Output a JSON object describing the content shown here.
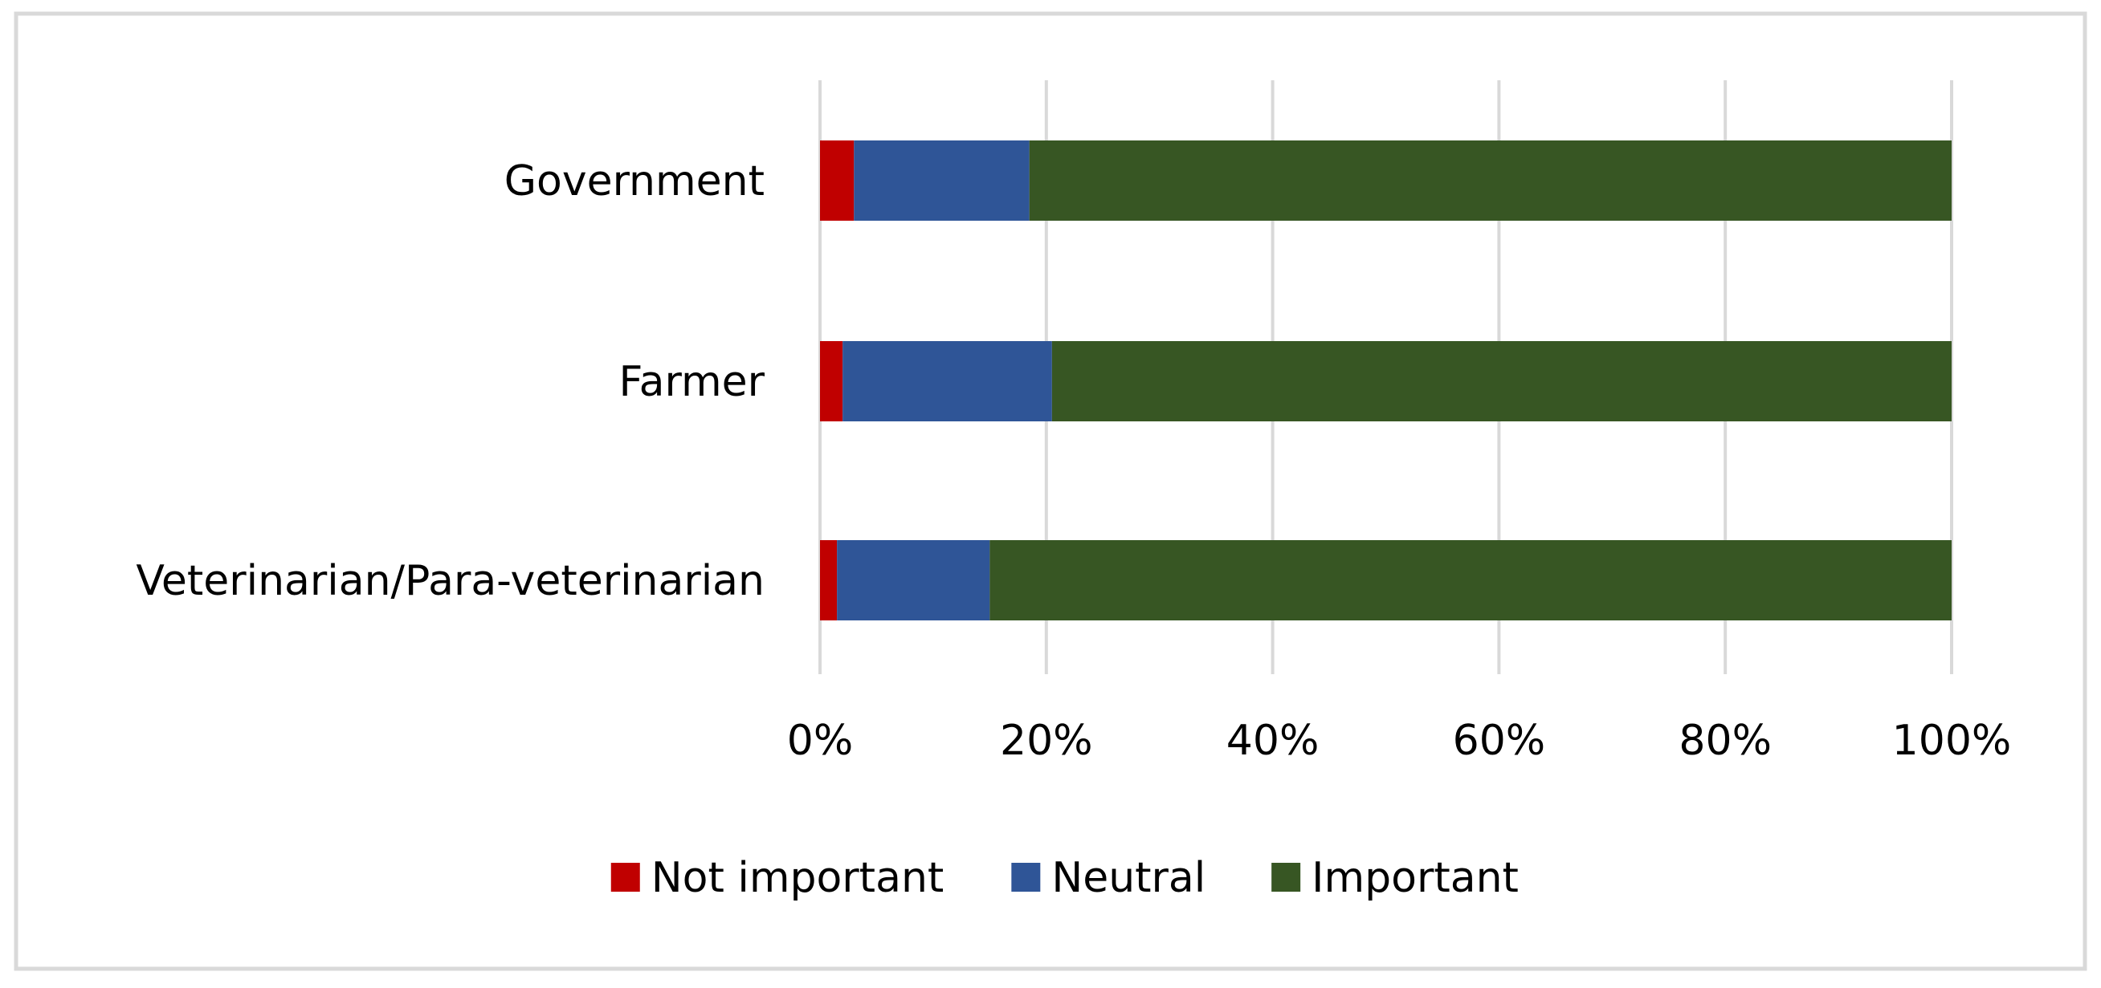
{
  "chart_data": {
    "type": "bar",
    "orientation": "horizontal",
    "stacked": "percent",
    "categories": [
      "Government",
      "Farmer",
      "Veterinarian/Para-veterinarian"
    ],
    "series": [
      {
        "name": "Not important",
        "values": [
          3,
          2,
          1.5
        ],
        "color": "#C00000"
      },
      {
        "name": "Neutral",
        "values": [
          15.5,
          18.5,
          13.5
        ],
        "color": "#2F5597"
      },
      {
        "name": "Important",
        "values": [
          81.5,
          79.5,
          85
        ],
        "color": "#375623"
      }
    ],
    "x_ticks": [
      "0%",
      "20%",
      "40%",
      "60%",
      "80%",
      "100%"
    ],
    "xlim": [
      0,
      100
    ],
    "grid": "vertical",
    "legend": "bottom",
    "title": "",
    "xlabel": "",
    "ylabel": ""
  }
}
